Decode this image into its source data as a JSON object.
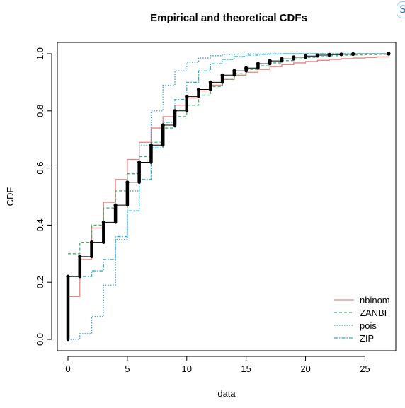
{
  "chart_data": {
    "type": "line",
    "title": "Empirical and theoretical CDFs",
    "xlabel": "data",
    "ylabel": "CDF",
    "xlim": [
      0,
      27
    ],
    "ylim": [
      0,
      1
    ],
    "x_ticks": [
      0,
      5,
      10,
      15,
      20,
      25
    ],
    "x_tick_labels": [
      "0",
      "5",
      "10",
      "15",
      "20",
      "25"
    ],
    "y_ticks": [
      0,
      0.2,
      0.4,
      0.6,
      0.8,
      1.0
    ],
    "y_tick_labels": [
      "0.0",
      "0.2",
      "0.4",
      "0.6",
      "0.8",
      "1.0"
    ],
    "grid": false,
    "legend_position": "bottom-right",
    "empirical": {
      "x": [
        0,
        1,
        2,
        3,
        4,
        5,
        6,
        7,
        8,
        9,
        10,
        11,
        12,
        13,
        14,
        15,
        16,
        17,
        18,
        19,
        20,
        21,
        22,
        23,
        24,
        27
      ],
      "y": [
        0.22,
        0.29,
        0.34,
        0.41,
        0.47,
        0.55,
        0.62,
        0.68,
        0.75,
        0.8,
        0.85,
        0.875,
        0.9,
        0.925,
        0.94,
        0.95,
        0.965,
        0.975,
        0.982,
        0.988,
        0.992,
        0.995,
        0.997,
        0.998,
        0.999,
        1.0
      ]
    },
    "series": [
      {
        "name": "nbinom",
        "color": "#f08080",
        "style": "solid",
        "x": [
          0,
          1,
          2,
          3,
          4,
          5,
          6,
          7,
          8,
          9,
          10,
          11,
          12,
          13,
          14,
          15,
          16,
          17,
          18,
          19,
          20,
          21,
          22,
          23,
          24,
          25,
          26,
          27
        ],
        "y": [
          0.15,
          0.28,
          0.39,
          0.48,
          0.56,
          0.63,
          0.69,
          0.74,
          0.78,
          0.82,
          0.845,
          0.87,
          0.89,
          0.91,
          0.925,
          0.935,
          0.945,
          0.955,
          0.962,
          0.968,
          0.973,
          0.977,
          0.98,
          0.983,
          0.985,
          0.987,
          0.989,
          0.99
        ]
      },
      {
        "name": "ZANBI",
        "color": "#3cb371",
        "style": "dashed",
        "x": [
          0,
          1,
          2,
          3,
          4,
          5,
          6,
          7,
          8,
          9,
          10,
          11,
          12,
          13,
          14,
          15,
          16,
          17,
          18,
          19,
          20,
          21,
          22,
          23,
          24,
          25,
          26,
          27
        ],
        "y": [
          0.3,
          0.34,
          0.4,
          0.46,
          0.52,
          0.58,
          0.64,
          0.69,
          0.74,
          0.78,
          0.82,
          0.855,
          0.885,
          0.91,
          0.93,
          0.945,
          0.958,
          0.968,
          0.976,
          0.982,
          0.987,
          0.99,
          0.993,
          0.995,
          0.996,
          0.997,
          0.998,
          0.999
        ]
      },
      {
        "name": "pois",
        "color": "#3b9ddb",
        "style": "dotted",
        "x": [
          0,
          1,
          2,
          3,
          4,
          5,
          6,
          7,
          8,
          9,
          10,
          11,
          12,
          13,
          14,
          15,
          16,
          17,
          18,
          19,
          20,
          27
        ],
        "y": [
          0.0,
          0.02,
          0.08,
          0.19,
          0.35,
          0.52,
          0.68,
          0.8,
          0.89,
          0.94,
          0.97,
          0.985,
          0.993,
          0.997,
          0.999,
          1.0,
          1.0,
          1.0,
          1.0,
          1.0,
          1.0,
          1.0
        ]
      },
      {
        "name": "ZIP",
        "color": "#20b2c8",
        "style": "dashdot",
        "x": [
          0,
          1,
          2,
          3,
          4,
          5,
          6,
          7,
          8,
          9,
          10,
          11,
          12,
          13,
          14,
          15,
          16,
          17,
          18,
          19,
          20,
          27
        ],
        "y": [
          0.22,
          0.22,
          0.24,
          0.28,
          0.36,
          0.45,
          0.56,
          0.67,
          0.76,
          0.84,
          0.9,
          0.94,
          0.965,
          0.98,
          0.99,
          0.995,
          0.998,
          0.999,
          1.0,
          1.0,
          1.0,
          1.0
        ]
      }
    ]
  }
}
